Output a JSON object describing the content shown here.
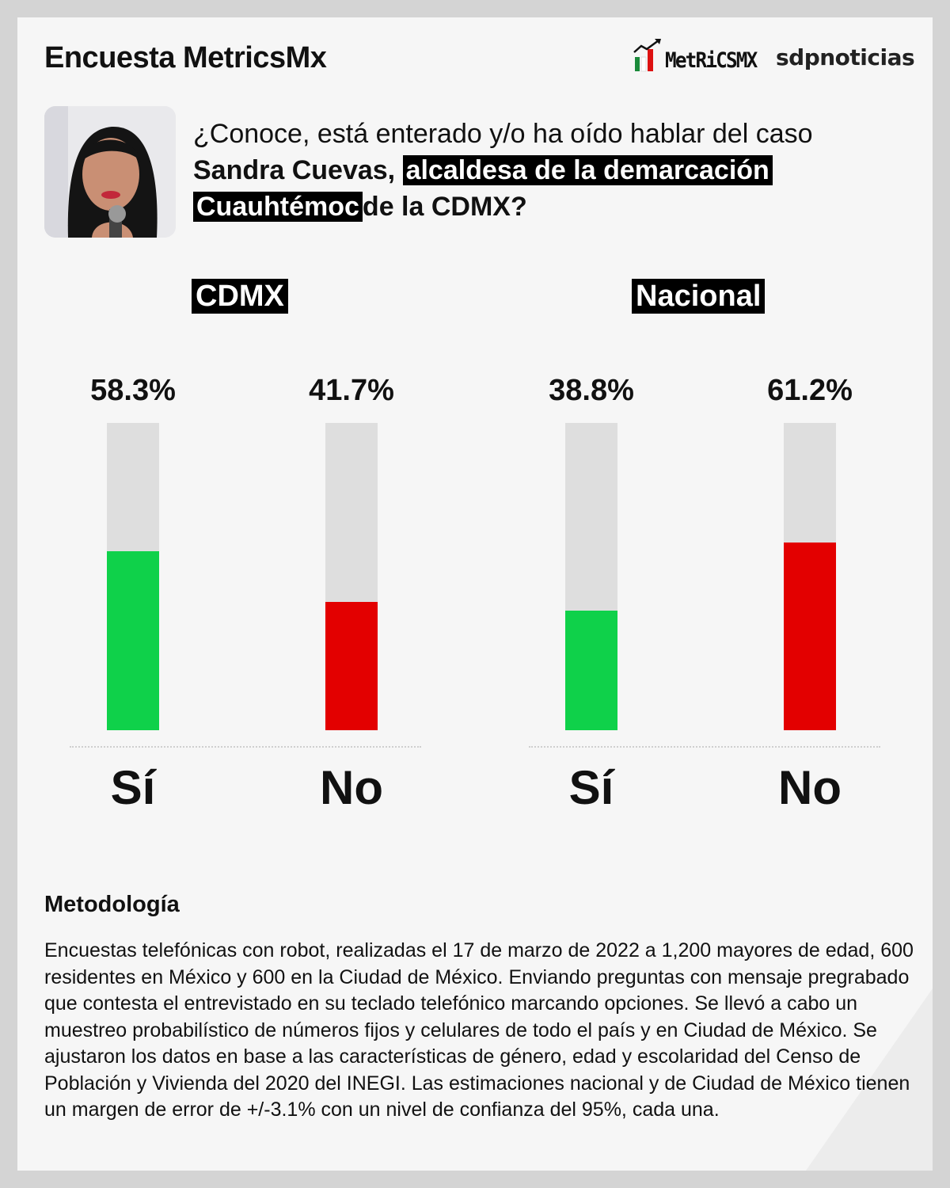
{
  "header": {
    "title": "Encuesta MetricsMx",
    "logo_metrics": "MetRiCSMX",
    "logo_sdp": "sdpnoticias"
  },
  "question": {
    "line1": "¿Conoce, está enterado y/o ha oído hablar del caso",
    "bold1": "Sandra Cuevas,",
    "highlight1": "alcaldesa de la demarcación",
    "highlight2": "Cuauhtémoc",
    "bold2": "de la CDMX?"
  },
  "colors": {
    "yes": "#0fd14a",
    "no": "#e30000",
    "track": "#dedede",
    "highlight_bg": "#000000"
  },
  "chart_data": [
    {
      "type": "bar",
      "title": "CDMX",
      "categories": [
        "Sí",
        "No"
      ],
      "values": [
        58.3,
        41.7
      ],
      "labels": [
        "58.3%",
        "41.7%"
      ],
      "ylim": [
        0,
        100
      ],
      "colors": [
        "#0fd14a",
        "#e30000"
      ]
    },
    {
      "type": "bar",
      "title": "Nacional",
      "categories": [
        "Sí",
        "No"
      ],
      "values": [
        38.8,
        61.2
      ],
      "labels": [
        "38.8%",
        "61.2%"
      ],
      "ylim": [
        0,
        100
      ],
      "colors": [
        "#0fd14a",
        "#e30000"
      ]
    }
  ],
  "methodology": {
    "heading": "Metodología",
    "text": "Encuestas telefónicas con robot, realizadas el 17 de marzo de 2022 a 1,200 mayores de edad, 600 residentes en México y 600 en la Ciudad de México. Enviando preguntas con mensaje pregrabado que contesta el entrevistado en su teclado telefónico marcando opciones. Se llevó a cabo un muestreo probabilístico de números fijos y celulares de todo el país y en Ciudad de México. Se ajustaron los datos en base a las características de género, edad y escolaridad del Censo de Población y Vivienda del 2020 del INEGI. Las estimaciones nacional y de Ciudad de México tienen un margen de error de +/-3.1% con un nivel de confianza del 95%, cada una."
  }
}
